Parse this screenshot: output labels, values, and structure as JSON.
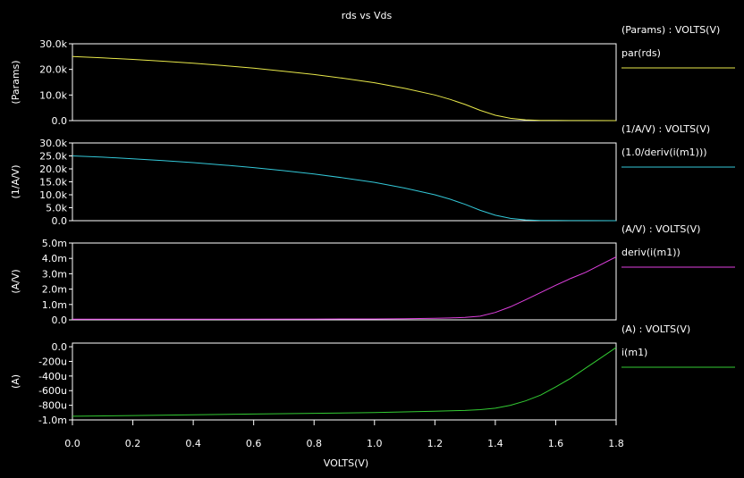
{
  "chart_data": {
    "title": "rds vs Vds",
    "xlabel": "VOLTS(V)",
    "x_ticks": [
      "0.0",
      "0.2",
      "0.4",
      "0.6",
      "0.8",
      "1.0",
      "1.2",
      "1.4",
      "1.6",
      "1.8"
    ],
    "xlim": [
      0,
      1.8
    ],
    "panels": [
      {
        "type": "line",
        "ylabel": "(Params)",
        "legend_header": "(Params) : VOLTS(V)",
        "ylim": [
          0,
          30000
        ],
        "y_ticks": [
          {
            "v": 0,
            "t": "0.0"
          },
          {
            "v": 10000,
            "t": "10.0k"
          },
          {
            "v": 20000,
            "t": "20.0k"
          },
          {
            "v": 30000,
            "t": "30.0k"
          }
        ],
        "series": [
          {
            "name": "par(rds)",
            "color": "#e8e84a",
            "x": [
              0,
              0.1,
              0.2,
              0.3,
              0.4,
              0.5,
              0.6,
              0.7,
              0.8,
              0.9,
              1.0,
              1.1,
              1.2,
              1.25,
              1.3,
              1.35,
              1.4,
              1.45,
              1.5,
              1.55,
              1.6,
              1.7,
              1.8
            ],
            "y": [
              25000,
              24500,
              23900,
              23200,
              22400,
              21500,
              20500,
              19300,
              18000,
              16500,
              14800,
              12600,
              10000,
              8300,
              6300,
              4000,
              2100,
              900,
              300,
              120,
              60,
              20,
              5
            ]
          }
        ]
      },
      {
        "type": "line",
        "ylabel": "(1/A/V)",
        "legend_header": "(1/A/V) : VOLTS(V)",
        "ylim": [
          0,
          30000
        ],
        "y_ticks": [
          {
            "v": 0,
            "t": "0.0"
          },
          {
            "v": 5000,
            "t": "5.0k"
          },
          {
            "v": 10000,
            "t": "10.0k"
          },
          {
            "v": 15000,
            "t": "15.0k"
          },
          {
            "v": 20000,
            "t": "20.0k"
          },
          {
            "v": 25000,
            "t": "25.0k"
          },
          {
            "v": 30000,
            "t": "30.0k"
          }
        ],
        "series": [
          {
            "name": "(1.0/deriv(i(m1)))",
            "color": "#33c8d8",
            "x": [
              0,
              0.1,
              0.2,
              0.3,
              0.4,
              0.5,
              0.6,
              0.7,
              0.8,
              0.9,
              1.0,
              1.1,
              1.2,
              1.25,
              1.3,
              1.35,
              1.4,
              1.45,
              1.5,
              1.55,
              1.6,
              1.7,
              1.8
            ],
            "y": [
              25000,
              24500,
              23900,
              23200,
              22400,
              21500,
              20500,
              19300,
              18000,
              16500,
              14800,
              12600,
              10000,
              8300,
              6300,
              4000,
              2100,
              900,
              300,
              120,
              60,
              20,
              5
            ]
          }
        ]
      },
      {
        "type": "line",
        "ylabel": "(A/V)",
        "legend_header": "(A/V) : VOLTS(V)",
        "ylim": [
          0,
          0.005
        ],
        "y_ticks": [
          {
            "v": 0,
            "t": "0.0"
          },
          {
            "v": 0.001,
            "t": "1.0m"
          },
          {
            "v": 0.002,
            "t": "2.0m"
          },
          {
            "v": 0.003,
            "t": "3.0m"
          },
          {
            "v": 0.004,
            "t": "4.0m"
          },
          {
            "v": 0.005,
            "t": "5.0m"
          }
        ],
        "series": [
          {
            "name": "deriv(i(m1))",
            "color": "#e040e0",
            "x": [
              0,
              0.4,
              0.8,
              1.0,
              1.1,
              1.2,
              1.25,
              1.3,
              1.35,
              1.4,
              1.45,
              1.5,
              1.55,
              1.6,
              1.65,
              1.7,
              1.75,
              1.8
            ],
            "y": [
              4e-05,
              4e-05,
              5e-05,
              6e-05,
              7e-05,
              0.0001,
              0.00012,
              0.00016,
              0.00024,
              0.00048,
              0.00085,
              0.0013,
              0.00178,
              0.00225,
              0.0027,
              0.0031,
              0.0036,
              0.0041
            ]
          }
        ]
      },
      {
        "type": "line",
        "ylabel": "(A)",
        "legend_header": "(A) : VOLTS(V)",
        "ylim": [
          -0.001,
          5e-05
        ],
        "y_ticks": [
          {
            "v": -0.001,
            "t": "-1.0m"
          },
          {
            "v": -0.0008,
            "t": "-800u"
          },
          {
            "v": -0.0006,
            "t": "-600u"
          },
          {
            "v": -0.0004,
            "t": "-400u"
          },
          {
            "v": -0.0002,
            "t": "-200u"
          },
          {
            "v": 0,
            "t": "0.0"
          }
        ],
        "series": [
          {
            "name": "i(m1)",
            "color": "#33cc33",
            "x": [
              0,
              0.2,
              0.4,
              0.6,
              0.8,
              1.0,
              1.2,
              1.3,
              1.35,
              1.4,
              1.45,
              1.5,
              1.55,
              1.6,
              1.65,
              1.7,
              1.75,
              1.8
            ],
            "y": [
              -0.00095,
              -0.00094,
              -0.00093,
              -0.00092,
              -0.00091,
              -0.0009,
              -0.00088,
              -0.00087,
              -0.00086,
              -0.00084,
              -0.0008,
              -0.00074,
              -0.00066,
              -0.00055,
              -0.00043,
              -0.00029,
              -0.00015,
              -1e-05
            ]
          }
        ]
      }
    ]
  }
}
